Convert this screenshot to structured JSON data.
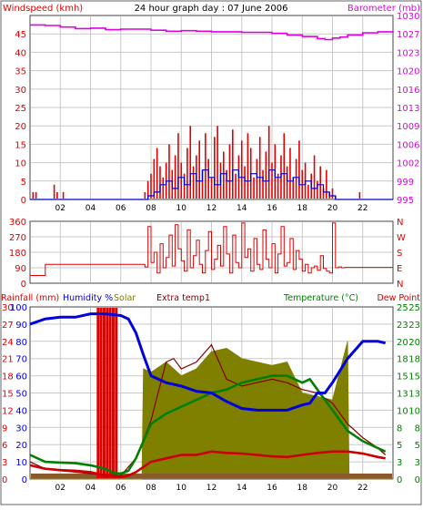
{
  "title": "24 hour graph day : 07 June 2006",
  "colors": {
    "wind": "#e00000",
    "wind_avg": "#0000cc",
    "baro": "#e000e0",
    "humidity": "#0000dd",
    "solar": "#808000",
    "extra": "#800000",
    "temp": "#008000",
    "dew": "#cc0000",
    "grid": "#c8c8c8",
    "rain": "#e00000"
  },
  "x_ticks": [
    "02",
    "04",
    "06",
    "08",
    "10",
    "12",
    "14",
    "16",
    "18",
    "20",
    "22"
  ],
  "chart_data": [
    {
      "type": "bar",
      "name": "wind",
      "title": "24 hour graph day : 07 June 2006",
      "ylabel_left": "Windspeed (kmh)",
      "ylabel_right": "Barometer (mb)",
      "left_ticks": [
        "0",
        "5",
        "10",
        "15",
        "20",
        "25",
        "30",
        "35",
        "40",
        "45"
      ],
      "right_ticks": [
        "995",
        "999",
        "1002",
        "1006",
        "1009",
        "1013",
        "1016",
        "1020",
        "1023",
        "1027",
        "1030"
      ],
      "ylim_left": [
        0,
        50
      ],
      "ylim_right": [
        995,
        1030
      ],
      "grid": true,
      "wind_gust": {
        "x": [
          0.2,
          0.4,
          1.6,
          1.8,
          2.2,
          7.6,
          7.8,
          8.0,
          8.2,
          8.4,
          8.6,
          8.8,
          9.0,
          9.2,
          9.4,
          9.6,
          9.8,
          10.0,
          10.2,
          10.4,
          10.6,
          10.8,
          11.0,
          11.2,
          11.4,
          11.6,
          11.8,
          12.0,
          12.2,
          12.4,
          12.6,
          12.8,
          13.0,
          13.2,
          13.4,
          13.6,
          13.8,
          14.0,
          14.2,
          14.4,
          14.6,
          14.8,
          15.0,
          15.2,
          15.4,
          15.6,
          15.8,
          16.0,
          16.2,
          16.4,
          16.6,
          16.8,
          17.0,
          17.2,
          17.4,
          17.6,
          17.8,
          18.0,
          18.2,
          18.4,
          18.6,
          18.8,
          19.0,
          19.2,
          19.4,
          19.6,
          19.8,
          20.0,
          20.2,
          21.8
        ],
        "values": [
          2,
          2,
          4,
          2,
          2,
          2,
          5,
          7,
          11,
          14,
          9,
          6,
          10,
          15,
          8,
          12,
          18,
          10,
          7,
          14,
          20,
          9,
          12,
          16,
          8,
          18,
          11,
          6,
          17,
          20,
          10,
          13,
          8,
          15,
          19,
          7,
          12,
          16,
          9,
          18,
          14,
          6,
          11,
          17,
          8,
          13,
          20,
          10,
          15,
          7,
          12,
          18,
          9,
          14,
          6,
          11,
          16,
          8,
          10,
          4,
          7,
          12,
          5,
          9,
          3,
          8,
          2,
          3,
          1,
          2
        ]
      },
      "wind_avg": {
        "x": [
          0,
          7.5,
          7.8,
          8.2,
          8.6,
          9.0,
          9.4,
          9.8,
          10.2,
          10.6,
          11.0,
          11.4,
          11.8,
          12.2,
          12.6,
          13.0,
          13.4,
          13.8,
          14.2,
          14.6,
          15.0,
          15.4,
          15.8,
          16.2,
          16.6,
          17.0,
          17.4,
          17.8,
          18.2,
          18.6,
          19.0,
          19.4,
          19.8,
          20.2,
          20.6,
          24
        ],
        "values": [
          0,
          0,
          1,
          2,
          4,
          5,
          3,
          6,
          4,
          7,
          5,
          8,
          6,
          4,
          7,
          5,
          8,
          6,
          5,
          7,
          6,
          5,
          8,
          6,
          7,
          5,
          6,
          4,
          5,
          3,
          4,
          2,
          1,
          0,
          0,
          0
        ]
      },
      "barometer": {
        "x": [
          0,
          1,
          2,
          3,
          4,
          5,
          6,
          7,
          8,
          9,
          10,
          11,
          12,
          13,
          14,
          15,
          16,
          17,
          18,
          19,
          19.5,
          20,
          20.5,
          21,
          22,
          23,
          24
        ],
        "values": [
          1028.2,
          1028.1,
          1027.8,
          1027.5,
          1027.6,
          1027.3,
          1027.4,
          1027.4,
          1027.2,
          1027.0,
          1027.1,
          1027.0,
          1026.9,
          1026.9,
          1026.8,
          1026.8,
          1026.6,
          1026.3,
          1026.0,
          1025.6,
          1025.4,
          1025.7,
          1025.9,
          1026.3,
          1026.7,
          1026.9,
          1027.0
        ]
      }
    },
    {
      "type": "line",
      "name": "wind_direction",
      "left_ticks": [
        "0",
        "90",
        "180",
        "270",
        "360"
      ],
      "right_ticks": [
        "N",
        "E",
        "S",
        "W",
        "N"
      ],
      "ylim": [
        0,
        360
      ],
      "grid": true,
      "x": [
        0,
        1,
        1.01,
        7.5,
        7.6,
        7.8,
        8.0,
        8.2,
        8.4,
        8.6,
        8.8,
        9.0,
        9.2,
        9.4,
        9.6,
        9.8,
        10.0,
        10.2,
        10.4,
        10.6,
        10.8,
        11.0,
        11.2,
        11.4,
        11.6,
        11.8,
        12.0,
        12.2,
        12.4,
        12.6,
        12.8,
        13.0,
        13.2,
        13.4,
        13.6,
        13.8,
        14.0,
        14.2,
        14.4,
        14.6,
        14.8,
        15.0,
        15.2,
        15.4,
        15.6,
        15.8,
        16.0,
        16.2,
        16.4,
        16.6,
        16.8,
        17.0,
        17.2,
        17.4,
        17.6,
        17.8,
        18.0,
        18.2,
        18.4,
        18.6,
        18.8,
        19.0,
        19.2,
        19.4,
        19.6,
        19.8,
        20.0,
        20.2,
        20.4,
        20.6,
        20.8,
        24
      ],
      "values": [
        45,
        45,
        110,
        110,
        95,
        330,
        120,
        180,
        60,
        230,
        90,
        150,
        280,
        100,
        340,
        200,
        130,
        70,
        310,
        90,
        160,
        250,
        110,
        60,
        190,
        300,
        80,
        140,
        220,
        100,
        330,
        170,
        60,
        280,
        120,
        90,
        350,
        150,
        200,
        70,
        260,
        110,
        80,
        310,
        140,
        90,
        230,
        60,
        170,
        330,
        100,
        120,
        260,
        80,
        190,
        140,
        70,
        110,
        60,
        90,
        100,
        75,
        160,
        85,
        70,
        60,
        350,
        90,
        95,
        90,
        92,
        90
      ]
    },
    {
      "type": "line",
      "name": "temperature",
      "ylabel_left": "Rainfall (mm)",
      "legend": [
        "Humidity %",
        "Solar",
        "Extra temp1",
        "Temperature (°C)",
        "Dew Point"
      ],
      "left_ticks_1": [
        "0",
        "3",
        "6",
        "9",
        "12",
        "15",
        "18",
        "21",
        "24",
        "27",
        "30"
      ],
      "left_ticks_2": [
        "0",
        "10",
        "20",
        "30",
        "40",
        "50",
        "60",
        "70",
        "80",
        "90",
        "100"
      ],
      "right_ticks_1": [
        "0",
        "3",
        "5",
        "8",
        "10",
        "13",
        "15",
        "18",
        "20",
        "23",
        "25"
      ],
      "right_ticks_2": [
        "0",
        "3",
        "5",
        "8",
        "10",
        "13",
        "15",
        "18",
        "20",
        "23",
        "25"
      ],
      "ylim_temp": [
        0,
        25
      ],
      "ylim_humidity": [
        0,
        100
      ],
      "grid": true,
      "humidity": {
        "x": [
          0,
          1,
          2,
          3,
          4,
          5,
          6,
          6.5,
          7,
          7.5,
          8,
          9,
          10,
          11,
          12,
          13,
          14,
          15,
          16,
          17,
          18,
          18.5,
          19,
          19.5,
          20,
          21,
          22,
          23,
          23.5
        ],
        "values": [
          90,
          93,
          94,
          94,
          96,
          96,
          95,
          93,
          85,
          72,
          60,
          56,
          54,
          51,
          50,
          45,
          41,
          40,
          40,
          40,
          43,
          44,
          50,
          50,
          56,
          70,
          80,
          80,
          79
        ]
      },
      "temperature": {
        "x": [
          0,
          1,
          2,
          3,
          4,
          5,
          5.5,
          6,
          6.5,
          7,
          7.5,
          8,
          9,
          10,
          11,
          12,
          13,
          14,
          15,
          16,
          17,
          18,
          18.5,
          19,
          20,
          21,
          22,
          23,
          23.5
        ],
        "values": [
          3.5,
          2.5,
          2.4,
          2.3,
          2.0,
          1.5,
          0.9,
          0.8,
          1.2,
          3.0,
          5.5,
          8.0,
          9.5,
          10.5,
          11.5,
          12.5,
          13.0,
          14.0,
          14.5,
          15.0,
          15.0,
          14.0,
          14.5,
          13.0,
          10.0,
          7.0,
          5.5,
          4.5,
          4.0
        ]
      },
      "dew_point": {
        "x": [
          0,
          1,
          2,
          3,
          4,
          5,
          6,
          6.5,
          7,
          8,
          9,
          10,
          11,
          12,
          13,
          14,
          15,
          16,
          17,
          18,
          19,
          20,
          21,
          22,
          23,
          23.5
        ],
        "values": [
          2.0,
          1.5,
          1.3,
          1.2,
          1.0,
          0.5,
          0.3,
          0.5,
          1.0,
          2.5,
          3.0,
          3.5,
          3.5,
          4.0,
          3.8,
          3.7,
          3.5,
          3.3,
          3.2,
          3.5,
          3.8,
          4.0,
          4.0,
          3.7,
          3.2,
          3.0
        ]
      },
      "extra_temp": {
        "x": [
          0,
          1,
          2,
          3,
          4,
          5,
          5.5,
          6,
          7,
          8,
          9,
          9.5,
          10,
          11,
          12,
          12.5,
          13,
          14,
          15,
          16,
          17,
          18,
          19,
          20,
          21,
          22,
          23,
          23.5
        ],
        "values": [
          2.5,
          1.5,
          1.2,
          1.0,
          0.8,
          0.5,
          0.3,
          0.5,
          3.0,
          8.5,
          17.0,
          17.5,
          16.0,
          17.0,
          19.5,
          17.0,
          14.5,
          13.5,
          14.0,
          14.5,
          14.0,
          13.0,
          12.5,
          11.0,
          8.0,
          6.0,
          4.5,
          3.5
        ]
      },
      "solar": {
        "x": [
          0,
          7.4,
          7.5,
          8,
          9,
          10,
          11,
          12,
          13,
          14,
          15,
          16,
          17,
          18,
          19,
          20,
          21,
          21.1,
          24
        ],
        "values": [
          0,
          0,
          16,
          17,
          17,
          16.5,
          16,
          20,
          19,
          19,
          17,
          18,
          17,
          14,
          12,
          13,
          20,
          0,
          0
        ]
      },
      "rain_bars_x": [
        4.5,
        4.7,
        4.9,
        5.1,
        5.3,
        5.5,
        5.7
      ]
    }
  ]
}
